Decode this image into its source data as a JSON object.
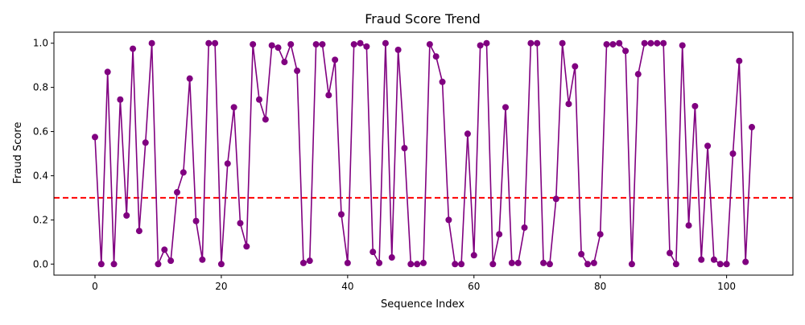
{
  "chart_data": {
    "type": "line",
    "title": "Fraud Score Trend",
    "xlabel": "Sequence Index",
    "ylabel": "Fraud Score",
    "xlim": [
      -6.5,
      110.5
    ],
    "ylim": [
      -0.05,
      1.05
    ],
    "x_ticks": [
      0,
      20,
      40,
      60,
      80,
      100
    ],
    "y_ticks": [
      0.0,
      0.2,
      0.4,
      0.6,
      0.8,
      1.0
    ],
    "x_tick_labels": [
      "0",
      "20",
      "40",
      "60",
      "80",
      "100"
    ],
    "y_tick_labels": [
      "0.0",
      "0.2",
      "0.4",
      "0.6",
      "0.8",
      "1.0"
    ],
    "grid": false,
    "series": [
      {
        "color": "#800080",
        "marker": "circle",
        "values": [
          0.575,
          0.0,
          0.87,
          0.0,
          0.745,
          0.22,
          0.975,
          0.15,
          0.55,
          1.0,
          0.0,
          0.065,
          0.015,
          0.325,
          0.415,
          0.84,
          0.195,
          0.02,
          1.0,
          1.0,
          0.0,
          0.455,
          0.71,
          0.185,
          0.08,
          0.995,
          0.745,
          0.655,
          0.99,
          0.98,
          0.915,
          0.995,
          0.875,
          0.005,
          0.015,
          0.995,
          0.995,
          0.765,
          0.925,
          0.225,
          0.005,
          0.995,
          1.0,
          0.985,
          0.055,
          0.005,
          1.0,
          0.03,
          0.97,
          0.525,
          0.0,
          0.0,
          0.005,
          0.995,
          0.94,
          0.825,
          0.2,
          0.0,
          0.0,
          0.59,
          0.04,
          0.99,
          1.0,
          0.0,
          0.135,
          0.71,
          0.005,
          0.005,
          0.165,
          1.0,
          1.0,
          0.005,
          0.0,
          0.295,
          1.0,
          0.725,
          0.895,
          0.045,
          0.0,
          0.005,
          0.135,
          0.995,
          0.995,
          1.0,
          0.965,
          0.0,
          0.86,
          1.0,
          1.0,
          1.0,
          1.0,
          0.05,
          0.0,
          0.99,
          0.175,
          0.715,
          0.02,
          0.535,
          0.02,
          0.0,
          0.0,
          0.5,
          0.92,
          0.01,
          0.62
        ]
      }
    ],
    "threshold": {
      "value": 0.3,
      "color": "#ff0000",
      "style": "dashed"
    }
  }
}
